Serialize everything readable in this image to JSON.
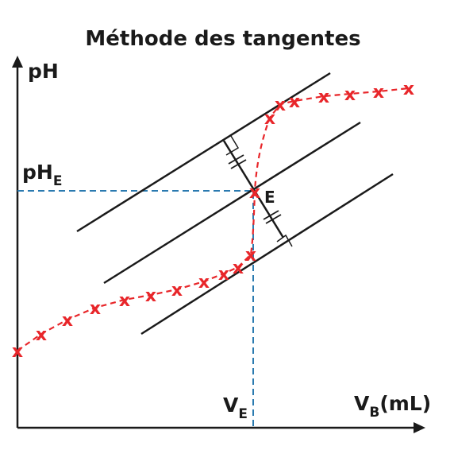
{
  "title": "Méthode des tangentes",
  "axes": {
    "y_label": "pH",
    "x_label_main": "V",
    "x_label_sub": "B",
    "x_label_unit": "(mL)"
  },
  "annotations": {
    "ph_e_main": "pH",
    "ph_e_sub": "E",
    "v_e_main": "V",
    "v_e_sub": "E",
    "equivalence_point": "E"
  },
  "colors": {
    "axis": "#1a1a1a",
    "curve": "#e8262a",
    "guides": "#2a7ab0"
  },
  "icons": {
    "point_marker": "x-mark",
    "right_angle": "right-angle-marker",
    "equal_ticks": "double-tick-marker"
  }
}
